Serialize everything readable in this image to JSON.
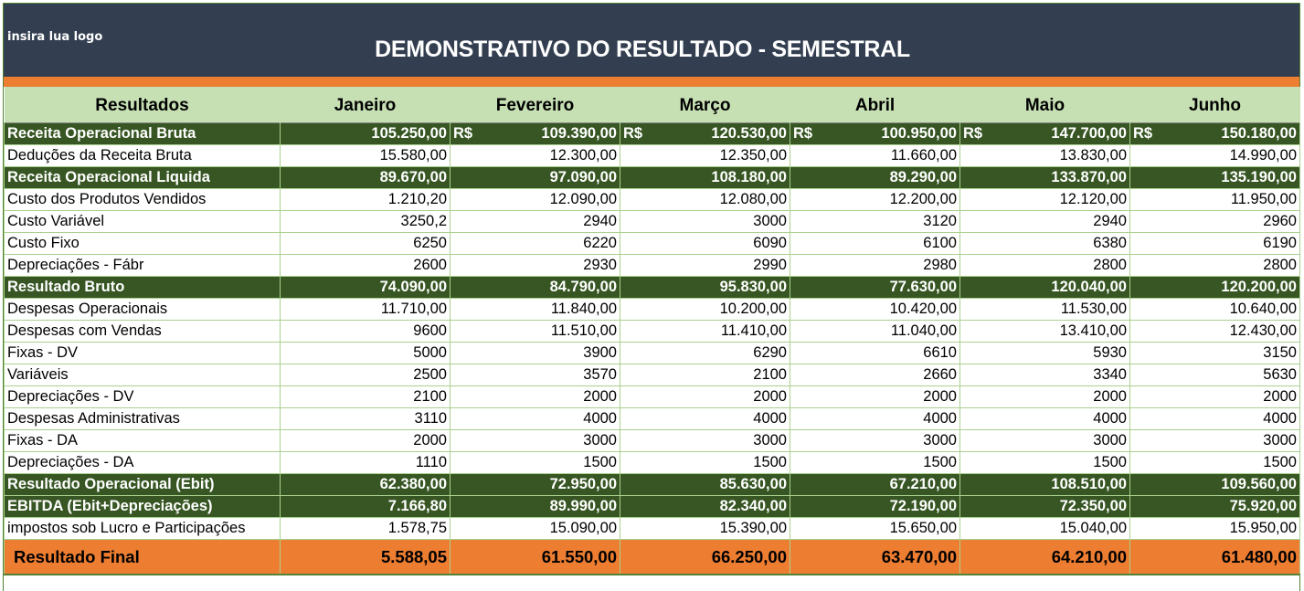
{
  "header": {
    "logo_placeholder": "insira lua logo",
    "title": "DEMONSTRATIVO DO RESULTADO - SEMESTRAL"
  },
  "colors": {
    "banner": "#333f50",
    "accent_orange": "#ed7d31",
    "header_green_light": "#c6e0b4",
    "row_green_dark": "#375623",
    "grid_green": "#a9d08e"
  },
  "table": {
    "columns": [
      "Resultados",
      "Janeiro",
      "Fevereiro",
      "Março",
      "Abril",
      "Maio",
      "Junho"
    ],
    "currency_symbol": "R$",
    "rows": [
      {
        "label": "Receita Operacional Bruta",
        "style": "highlight",
        "values": [
          "105.250,00",
          "109.390,00",
          "120.530,00",
          "100.950,00",
          "147.700,00",
          "150.180,00"
        ]
      },
      {
        "label": "Deduções da Receita Bruta",
        "style": "normal",
        "values": [
          "15.580,00",
          "12.300,00",
          "12.350,00",
          "11.660,00",
          "13.830,00",
          "14.990,00"
        ]
      },
      {
        "label": "Receita Operacional Liquida",
        "style": "highlight",
        "values": [
          "89.670,00",
          "97.090,00",
          "108.180,00",
          "89.290,00",
          "133.870,00",
          "135.190,00"
        ]
      },
      {
        "label": "Custo dos Produtos Vendidos",
        "style": "normal",
        "values": [
          "1.210,20",
          "12.090,00",
          "12.080,00",
          "12.200,00",
          "12.120,00",
          "11.950,00"
        ]
      },
      {
        "label": "Custo Variável",
        "style": "normal",
        "values": [
          "3250,2",
          "2940",
          "3000",
          "3120",
          "2940",
          "2960"
        ]
      },
      {
        "label": "Custo Fixo",
        "style": "normal",
        "values": [
          "6250",
          "6220",
          "6090",
          "6100",
          "6380",
          "6190"
        ]
      },
      {
        "label": "Depreciações - Fábr",
        "style": "normal",
        "values": [
          "2600",
          "2930",
          "2990",
          "2980",
          "2800",
          "2800"
        ]
      },
      {
        "label": "Resultado Bruto",
        "style": "highlight",
        "values": [
          "74.090,00",
          "84.790,00",
          "95.830,00",
          "77.630,00",
          "120.040,00",
          "120.200,00"
        ]
      },
      {
        "label": "Despesas Operacionais",
        "style": "normal",
        "values": [
          "11.710,00",
          "11.840,00",
          "10.200,00",
          "10.420,00",
          "11.530,00",
          "10.640,00"
        ]
      },
      {
        "label": "Despesas com Vendas",
        "style": "normal",
        "values": [
          "9600",
          "11.510,00",
          "11.410,00",
          "11.040,00",
          "13.410,00",
          "12.430,00"
        ]
      },
      {
        "label": "Fixas - DV",
        "style": "normal",
        "values": [
          "5000",
          "3900",
          "6290",
          "6610",
          "5930",
          "3150"
        ]
      },
      {
        "label": "Variáveis",
        "style": "normal",
        "values": [
          "2500",
          "3570",
          "2100",
          "2660",
          "3340",
          "5630"
        ]
      },
      {
        "label": "Depreciações - DV",
        "style": "normal",
        "values": [
          "2100",
          "2000",
          "2000",
          "2000",
          "2000",
          "2000"
        ]
      },
      {
        "label": "Despesas Administrativas",
        "style": "normal",
        "values": [
          "3110",
          "4000",
          "4000",
          "4000",
          "4000",
          "4000"
        ]
      },
      {
        "label": "Fixas - DA",
        "style": "normal",
        "values": [
          "2000",
          "3000",
          "3000",
          "3000",
          "3000",
          "3000"
        ]
      },
      {
        "label": "Depreciações - DA",
        "style": "normal",
        "values": [
          "1110",
          "1500",
          "1500",
          "1500",
          "1500",
          "1500"
        ]
      },
      {
        "label": "Resultado Operacional (Ebit)",
        "style": "highlight",
        "values": [
          "62.380,00",
          "72.950,00",
          "85.630,00",
          "67.210,00",
          "108.510,00",
          "109.560,00"
        ]
      },
      {
        "label": "EBITDA (Ebit+Depreciações)",
        "style": "highlight",
        "values": [
          "7.166,80",
          "89.990,00",
          "82.340,00",
          "72.190,00",
          "72.350,00",
          "75.920,00"
        ]
      },
      {
        "label": "impostos sob Lucro e Participações",
        "style": "normal",
        "values": [
          "1.578,75",
          "15.090,00",
          "15.390,00",
          "15.650,00",
          "15.040,00",
          "15.950,00"
        ]
      },
      {
        "label": "Resultado Final",
        "style": "final",
        "values": [
          "5.588,05",
          "61.550,00",
          "66.250,00",
          "63.470,00",
          "64.210,00",
          "61.480,00"
        ]
      }
    ]
  }
}
